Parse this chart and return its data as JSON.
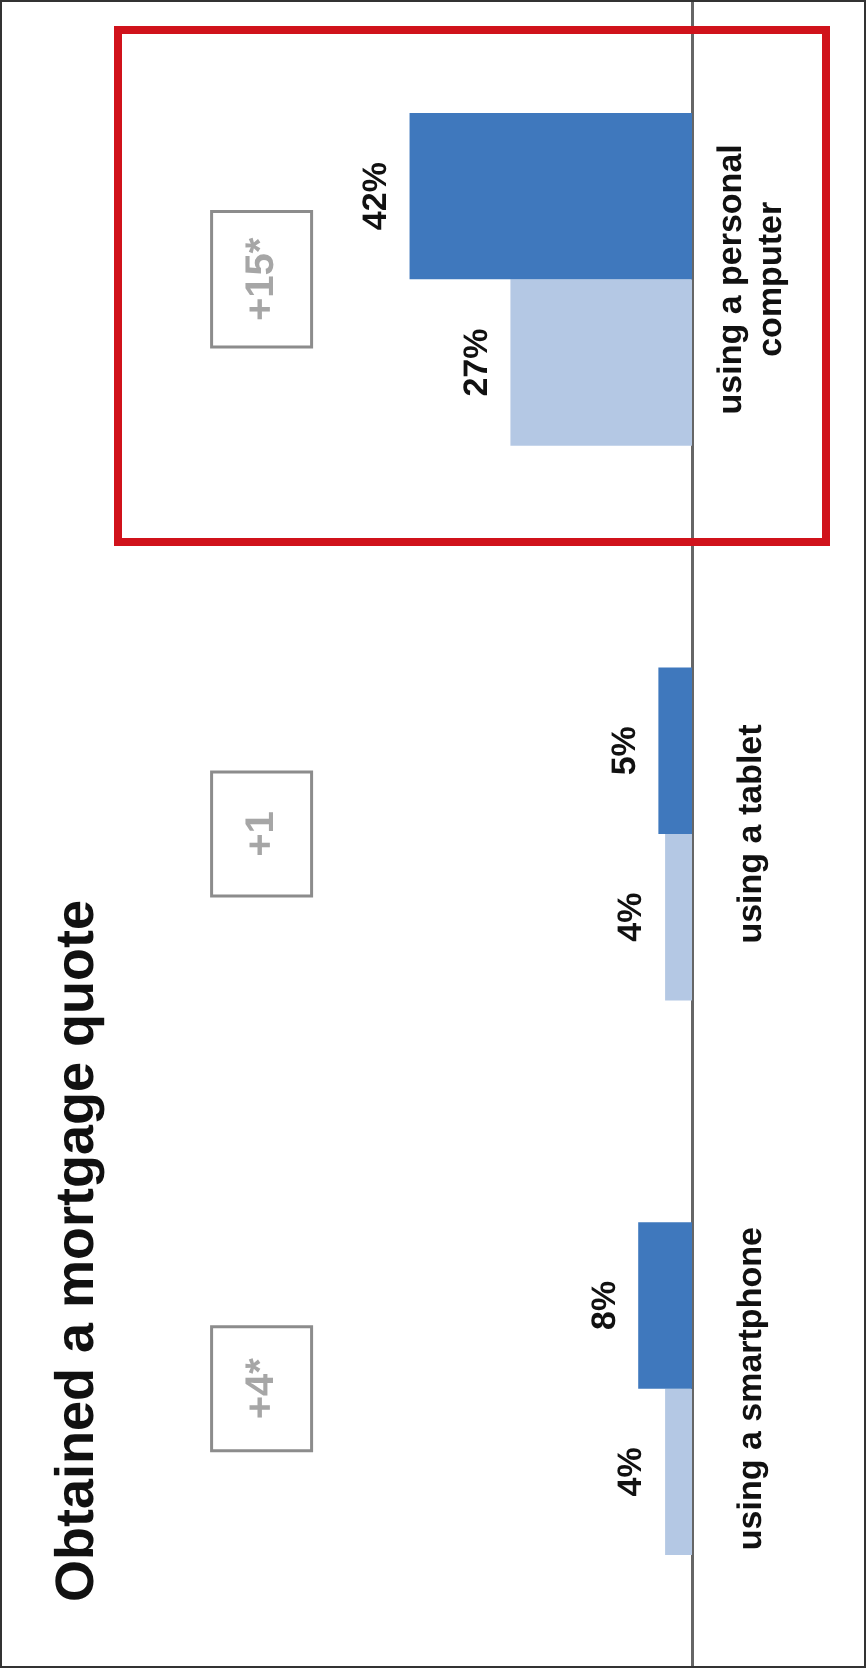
{
  "chart_data": {
    "type": "bar",
    "orientation": "horizontal",
    "title": "Obtained a mortgage quote",
    "categories": [
      "using a personal computer",
      "using a tablet",
      "using a smartphone"
    ],
    "series": [
      {
        "color": "#3f78bd",
        "values": [
          42,
          5,
          8
        ],
        "value_labels": [
          "42%",
          "5%",
          "8%"
        ]
      },
      {
        "color": "#b4c8e4",
        "values": [
          27,
          4,
          4
        ],
        "value_labels": [
          "27%",
          "4%",
          "4%"
        ]
      }
    ],
    "annotations": [
      "+15*",
      "+1",
      "+4*"
    ]
  }
}
